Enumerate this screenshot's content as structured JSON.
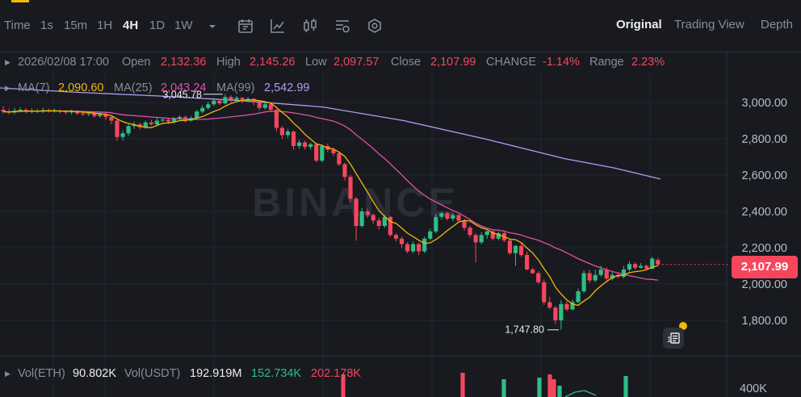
{
  "toolbar": {
    "time_label": "Time",
    "intervals": [
      "1s",
      "15m",
      "1H",
      "4H",
      "1D",
      "1W"
    ],
    "active_interval": "4H",
    "icons": [
      "chevron-down-icon",
      "calendar-icon",
      "line-chart-icon",
      "candle-icon",
      "indicator-icon",
      "settings-icon"
    ],
    "views": [
      "Original",
      "Trading View",
      "Depth"
    ],
    "active_view": "Original"
  },
  "info": {
    "datetime": "2026/02/08 17:00",
    "open_label": "Open",
    "open": "2,132.36",
    "high_label": "High",
    "high": "2,145.26",
    "low_label": "Low",
    "low": "2,097.57",
    "close_label": "Close",
    "close": "2,107.99",
    "change_label": "CHANGE",
    "change": "-1.14%",
    "range_label": "Range",
    "range": "2.23%"
  },
  "ma": {
    "ma7_label": "MA(7)",
    "ma7": "2,090.60",
    "ma25_label": "MA(25)",
    "ma25": "2,043.24",
    "ma99_label": "MA(99)",
    "ma99": "2,542.99"
  },
  "colors": {
    "up": "#2ebd85",
    "down": "#f6465d",
    "ma7": "#f0b90b",
    "ma25": "#e250a7",
    "ma99": "#b19cf0",
    "grid": "#23272e"
  },
  "watermark": "BINANCE",
  "last_price": "2,107.99",
  "volume": {
    "vol_eth_label": "Vol(ETH)",
    "vol_eth": "90.802K",
    "vol_usdt_label": "Vol(USDT)",
    "vol_usdt": "192.919M",
    "ma1": "152.734K",
    "ma2": "202.178K",
    "axis_label": "400K"
  },
  "chart_data": {
    "type": "candlestick",
    "y_ticks": [
      "3,000.00",
      "2,800.00",
      "2,600.00",
      "2,400.00",
      "2,200.00",
      "2,000.00",
      "1,800.00"
    ],
    "ylim": [
      1700,
      3150
    ],
    "annotations": {
      "high": "3,045.78",
      "low": "1,747.80"
    },
    "candles": [
      [
        2960,
        2950,
        2980,
        2940
      ],
      [
        2950,
        2945,
        2965,
        2935
      ],
      [
        2945,
        2955,
        2970,
        2935
      ],
      [
        2955,
        2960,
        2975,
        2945
      ],
      [
        2960,
        2950,
        2970,
        2940
      ],
      [
        2950,
        2955,
        2968,
        2940
      ],
      [
        2955,
        2950,
        2965,
        2940
      ],
      [
        2950,
        2958,
        2970,
        2942
      ],
      [
        2958,
        2952,
        2966,
        2944
      ],
      [
        2952,
        2956,
        2966,
        2944
      ],
      [
        2956,
        2950,
        2962,
        2940
      ],
      [
        2950,
        2945,
        2958,
        2935
      ],
      [
        2945,
        2950,
        2962,
        2935
      ],
      [
        2950,
        2940,
        2956,
        2930
      ],
      [
        2940,
        2935,
        2950,
        2925
      ],
      [
        2935,
        2940,
        2948,
        2925
      ],
      [
        2940,
        2925,
        2946,
        2915
      ],
      [
        2925,
        2935,
        2945,
        2915
      ],
      [
        2935,
        2920,
        2942,
        2905
      ],
      [
        2920,
        2900,
        2930,
        2880
      ],
      [
        2900,
        2810,
        2905,
        2790
      ],
      [
        2810,
        2830,
        2845,
        2790
      ],
      [
        2830,
        2870,
        2880,
        2815
      ],
      [
        2870,
        2880,
        2895,
        2855
      ],
      [
        2880,
        2865,
        2888,
        2850
      ],
      [
        2865,
        2890,
        2900,
        2855
      ],
      [
        2890,
        2880,
        2905,
        2870
      ],
      [
        2880,
        2900,
        2915,
        2870
      ],
      [
        2900,
        2905,
        2915,
        2890
      ],
      [
        2905,
        2895,
        2912,
        2880
      ],
      [
        2895,
        2910,
        2920,
        2885
      ],
      [
        2910,
        2920,
        2930,
        2900
      ],
      [
        2920,
        2900,
        2928,
        2890
      ],
      [
        2900,
        2915,
        2925,
        2895
      ],
      [
        2915,
        2950,
        2960,
        2905
      ],
      [
        2950,
        2970,
        2985,
        2940
      ],
      [
        2970,
        2990,
        3005,
        2960
      ],
      [
        2990,
        3010,
        3025,
        2980
      ],
      [
        3010,
        2995,
        3020,
        2985
      ],
      [
        2995,
        3030,
        3046,
        2990
      ],
      [
        3030,
        3015,
        3040,
        3000
      ],
      [
        3015,
        3025,
        3035,
        3005
      ],
      [
        3025,
        3010,
        3030,
        2995
      ],
      [
        3010,
        3020,
        3030,
        3000
      ],
      [
        3020,
        3000,
        3025,
        2985
      ],
      [
        3000,
        2970,
        3005,
        2955
      ],
      [
        2970,
        2990,
        2998,
        2960
      ],
      [
        2990,
        2960,
        2995,
        2950
      ],
      [
        2960,
        2860,
        2965,
        2840
      ],
      [
        2860,
        2820,
        2870,
        2800
      ],
      [
        2820,
        2840,
        2855,
        2805
      ],
      [
        2840,
        2760,
        2845,
        2740
      ],
      [
        2760,
        2780,
        2795,
        2745
      ],
      [
        2780,
        2755,
        2790,
        2740
      ],
      [
        2755,
        2770,
        2780,
        2740
      ],
      [
        2770,
        2680,
        2775,
        2670
      ],
      [
        2680,
        2760,
        2770,
        2670
      ],
      [
        2760,
        2740,
        2775,
        2725
      ],
      [
        2740,
        2720,
        2750,
        2705
      ],
      [
        2720,
        2660,
        2730,
        2650
      ],
      [
        2660,
        2590,
        2668,
        2570
      ],
      [
        2590,
        2470,
        2600,
        2450
      ],
      [
        2470,
        2320,
        2480,
        2240
      ],
      [
        2320,
        2400,
        2420,
        2310
      ],
      [
        2400,
        2380,
        2415,
        2365
      ],
      [
        2380,
        2350,
        2390,
        2330
      ],
      [
        2350,
        2320,
        2365,
        2300
      ],
      [
        2320,
        2370,
        2380,
        2310
      ],
      [
        2370,
        2270,
        2375,
        2260
      ],
      [
        2270,
        2250,
        2280,
        2235
      ],
      [
        2250,
        2220,
        2260,
        2200
      ],
      [
        2220,
        2180,
        2230,
        2170
      ],
      [
        2180,
        2220,
        2235,
        2170
      ],
      [
        2220,
        2180,
        2228,
        2160
      ],
      [
        2180,
        2250,
        2260,
        2170
      ],
      [
        2250,
        2290,
        2305,
        2240
      ],
      [
        2290,
        2370,
        2385,
        2280
      ],
      [
        2370,
        2390,
        2400,
        2355
      ],
      [
        2390,
        2360,
        2398,
        2350
      ],
      [
        2360,
        2380,
        2392,
        2345
      ],
      [
        2380,
        2350,
        2385,
        2340
      ],
      [
        2350,
        2310,
        2360,
        2295
      ],
      [
        2310,
        2270,
        2320,
        2255
      ],
      [
        2270,
        2230,
        2280,
        2120
      ],
      [
        2230,
        2270,
        2285,
        2220
      ],
      [
        2270,
        2290,
        2295,
        2250
      ],
      [
        2290,
        2250,
        2298,
        2240
      ],
      [
        2250,
        2280,
        2290,
        2240
      ],
      [
        2280,
        2240,
        2295,
        2230
      ],
      [
        2240,
        2170,
        2250,
        2160
      ],
      [
        2170,
        2210,
        2215,
        2100
      ],
      [
        2210,
        2160,
        2225,
        2150
      ],
      [
        2160,
        2080,
        2180,
        2075
      ],
      [
        2080,
        2060,
        2090,
        2055
      ],
      [
        2060,
        2010,
        2070,
        2000
      ],
      [
        2010,
        1900,
        2025,
        1885
      ],
      [
        1900,
        1870,
        1930,
        1860
      ],
      [
        1870,
        1800,
        1880,
        1780
      ],
      [
        1800,
        1890,
        1910,
        1748
      ],
      [
        1890,
        1860,
        1905,
        1850
      ],
      [
        1860,
        1900,
        1915,
        1855
      ],
      [
        1900,
        1960,
        1975,
        1895
      ],
      [
        1960,
        2060,
        2075,
        1950
      ],
      [
        2060,
        2020,
        2080,
        2005
      ],
      [
        2020,
        2050,
        2080,
        2010
      ],
      [
        2050,
        2080,
        2100,
        2040
      ],
      [
        2080,
        2030,
        2090,
        2020
      ],
      [
        2030,
        2050,
        2065,
        2020
      ],
      [
        2050,
        2040,
        2060,
        2030
      ],
      [
        2040,
        2080,
        2100,
        2030
      ],
      [
        2080,
        2110,
        2125,
        2070
      ],
      [
        2110,
        2090,
        2120,
        2080
      ],
      [
        2090,
        2100,
        2115,
        2085
      ],
      [
        2100,
        2085,
        2108,
        2075
      ],
      [
        2085,
        2140,
        2150,
        2080
      ],
      [
        2132,
        2108,
        2145,
        2097
      ]
    ]
  }
}
